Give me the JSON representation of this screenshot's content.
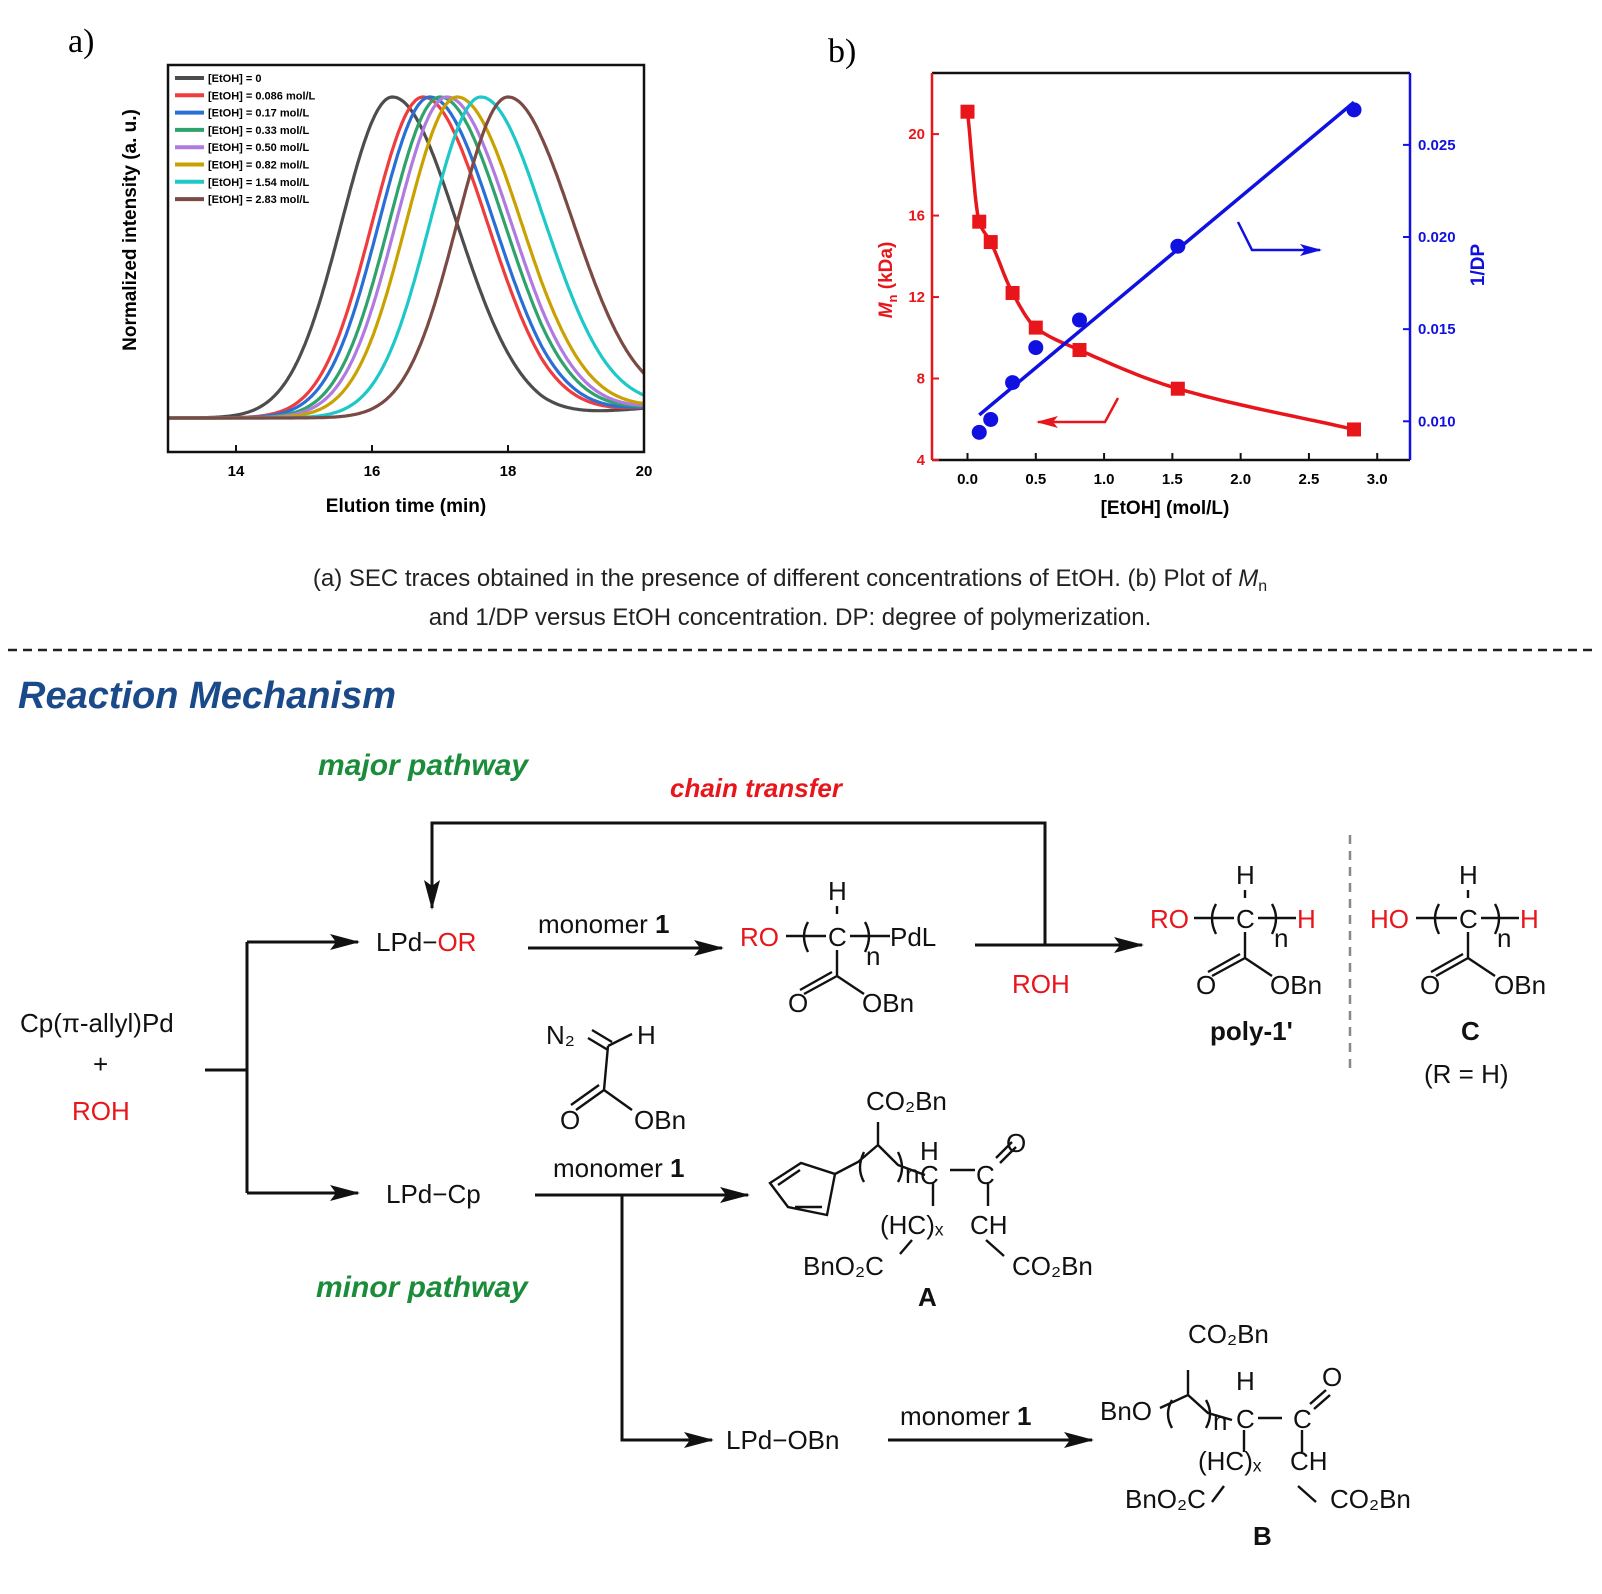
{
  "panel_a": {
    "label": "a)"
  },
  "panel_b": {
    "label": "b)"
  },
  "chart_data": [
    {
      "type": "line",
      "xlabel": "Elution time (min)",
      "ylabel": "Normalized intensity (a. u.)",
      "xlim": [
        13,
        20
      ],
      "xticks": [
        "14",
        "16",
        "18",
        "20"
      ],
      "legend_position": "top-left",
      "series": [
        {
          "name": "[EtOH] = 0",
          "peak": 16.3,
          "color": "#4d4d4d"
        },
        {
          "name": "[EtOH] = 0.086 mol/L",
          "peak": 16.75,
          "color": "#f03c3c"
        },
        {
          "name": "[EtOH] = 0.17 mol/L",
          "peak": 16.85,
          "color": "#2a6fd6"
        },
        {
          "name": "[EtOH] = 0.33 mol/L",
          "peak": 17.0,
          "color": "#2fa36b"
        },
        {
          "name": "[EtOH] = 0.50 mol/L",
          "peak": 17.1,
          "color": "#b07be0"
        },
        {
          "name": "[EtOH] = 0.82 mol/L",
          "peak": 17.25,
          "color": "#c9a100"
        },
        {
          "name": "[EtOH] = 1.54 mol/L",
          "peak": 17.6,
          "color": "#1fc8c8"
        },
        {
          "name": "[EtOH] = 2.83 mol/L",
          "peak": 18.0,
          "color": "#7b4a44"
        }
      ]
    },
    {
      "type": "scatter",
      "xlabel": "[EtOH] (mol/L)",
      "ylabel_left": {
        "main": "M",
        "sub": "n",
        "rest": " (kDa)"
      },
      "ylabel_right": "1/DP",
      "xlim": [
        -0.26,
        3.24
      ],
      "ylim_left": [
        4,
        23
      ],
      "ylim_right": [
        0.0079,
        0.0289
      ],
      "xticks": [
        "0.0",
        "0.5",
        "1.0",
        "1.5",
        "2.0",
        "2.5",
        "3.0"
      ],
      "yticks_left": [
        "4",
        "8",
        "12",
        "16",
        "20"
      ],
      "yticks_right": [
        "0.010",
        "0.015",
        "0.020",
        "0.025"
      ],
      "x": [
        0,
        0.086,
        0.17,
        0.33,
        0.5,
        0.82,
        1.54,
        2.83
      ],
      "series": [
        {
          "axis": "left",
          "marker": "square",
          "color": "#e8161b",
          "fit": "curve",
          "values": [
            21.1,
            15.7,
            14.7,
            12.2,
            10.5,
            9.4,
            7.5,
            5.5
          ]
        },
        {
          "axis": "right",
          "marker": "circle",
          "color": "#1010e0",
          "fit": "linear",
          "values": [
            null,
            0.0094,
            0.0101,
            0.0121,
            0.014,
            0.0155,
            0.0195,
            0.0269
          ]
        }
      ]
    }
  ],
  "caption": {
    "line1": "(a) SEC traces obtained in the presence of different concentrations of EtOH. (b) Plot of ",
    "line1_M": "M",
    "line1_n": "n",
    "line2": "and 1/DP versus EtOH concentration. DP: degree of polymerization."
  },
  "mechanism": {
    "title": "Reaction Mechanism",
    "major": "major pathway",
    "minor": "minor pathway",
    "chain_transfer": "chain transfer",
    "start": {
      "cat": "Cp(π-allyl)Pd",
      "plus": "+",
      "roh": "ROH"
    },
    "lpd_or": {
      "lpd": "LPd−",
      "or": "OR"
    },
    "lpd_cp": "LPd−Cp",
    "lpd_obn": "LPd−OBn",
    "monomer_word": "monomer ",
    "monomer_num": "1",
    "roh": "ROH",
    "colors": {
      "red": "#e8161b",
      "green": "#1a8c3a",
      "title": "#1a4a8a"
    },
    "growing": {
      "ro": "RO",
      "c": "C",
      "h": "H",
      "n": "n",
      "pdl": "PdL",
      "o": "O",
      "obn": "OBn"
    },
    "poly": {
      "ro": "RO",
      "c": "C",
      "h": "H",
      "n": "n",
      "hend": "H",
      "o": "O",
      "obn": "OBn",
      "label": "poly-1'"
    },
    "prodC": {
      "ho": "HO",
      "c": "C",
      "h": "H",
      "n": "n",
      "hend": "H",
      "o": "O",
      "obn": "OBn",
      "label": "C",
      "note": "(R = H)"
    },
    "monomer": {
      "n2": "N₂",
      "h": "H",
      "o": "O",
      "obn": "OBn"
    },
    "prodA": {
      "co2bn_top": "CO₂Bn",
      "n": "n",
      "h": "H",
      "c1": "C",
      "c2": "C",
      "o": "O",
      "hcx": "(HC)ₓ",
      "ch": "CH",
      "bno2c": "BnO₂C",
      "co2bn": "CO₂Bn",
      "label": "A"
    },
    "prodB": {
      "co2bn_top": "CO₂Bn",
      "bno": "BnO",
      "n": "n",
      "h": "H",
      "c1": "C",
      "c2": "C",
      "o": "O",
      "hcx": "(HC)ₓ",
      "ch": "CH",
      "bno2c": "BnO₂C",
      "co2bn": "CO₂Bn",
      "label": "B"
    }
  }
}
